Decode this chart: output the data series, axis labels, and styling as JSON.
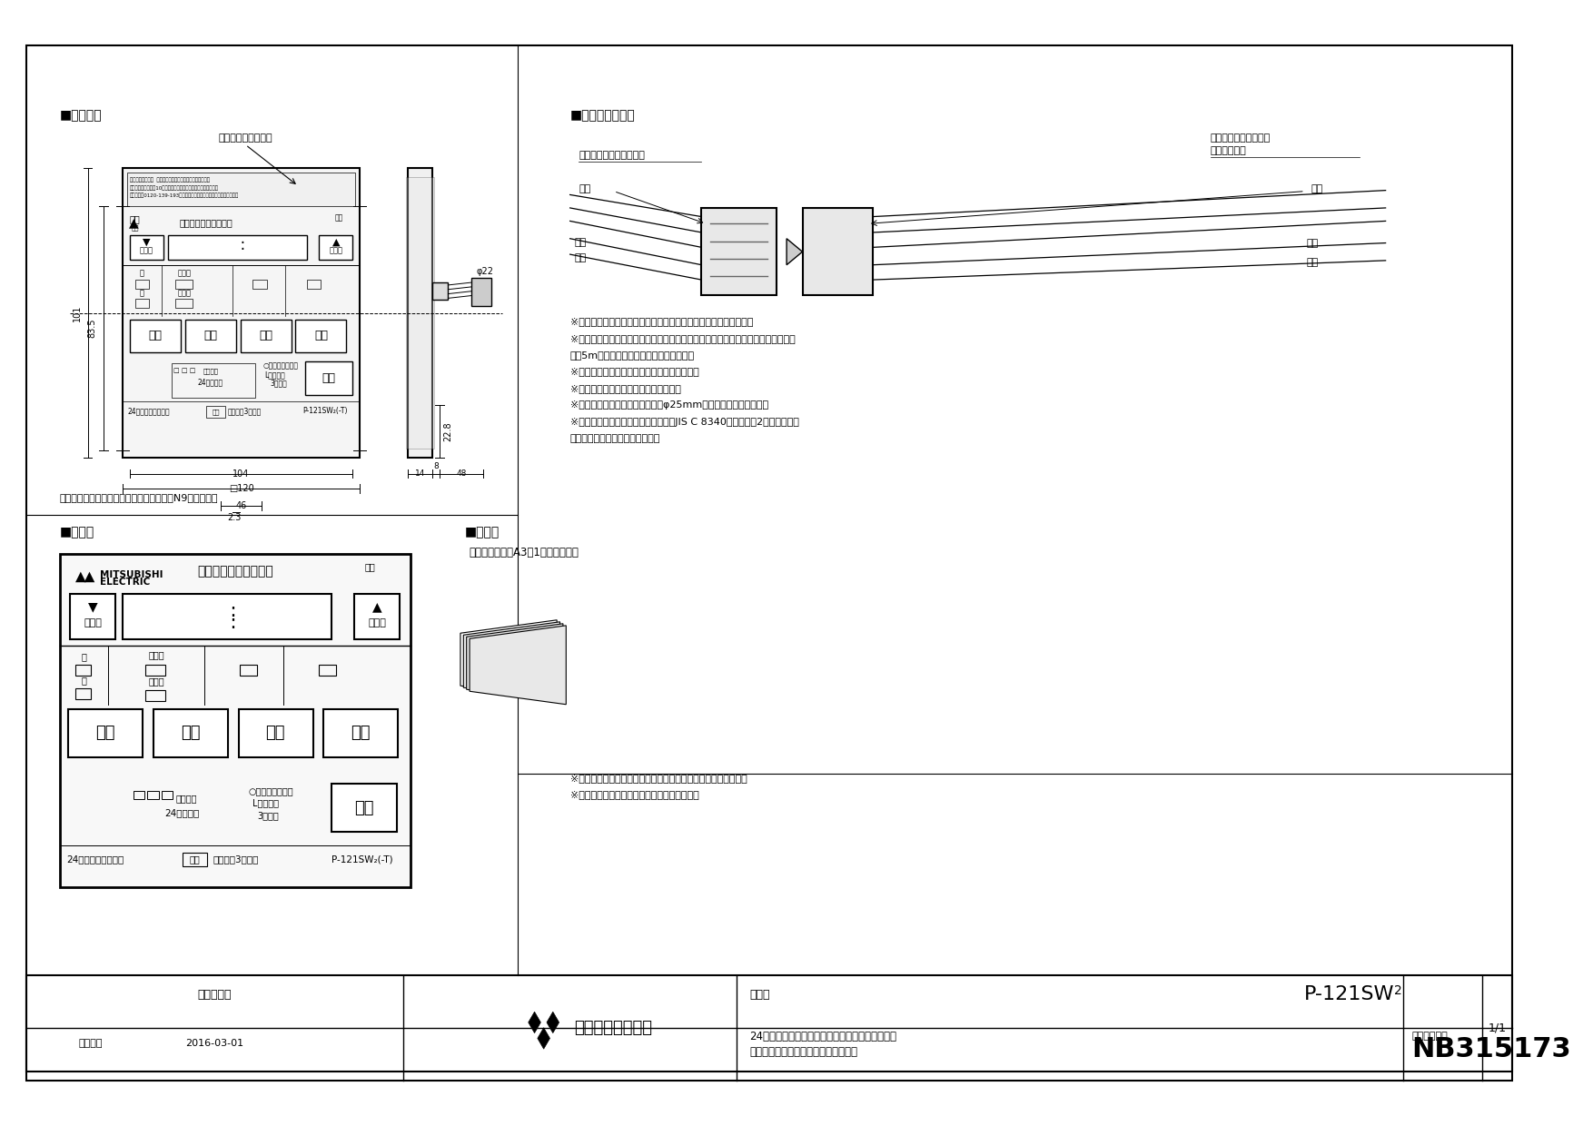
{
  "bg_color": "#ffffff",
  "title_section1": "■外形寸法",
  "title_section2": "■コネクタ接続部",
  "title_section3": "■表示部",
  "title_section4": "■付属品",
  "label_tokutei": "特定保守製品ラベル",
  "label_control_side": "コントロールスイッチ側",
  "label_control_switch": "コントロールスイッチ",
  "label_connection_code": "接続コード側",
  "label_aka": "アカ",
  "label_shiro": "シロ",
  "label_kuro": "クロ",
  "notes": [
    "※付属の据付説明書をお読みいただき、正しく据付けてください。",
    "※コントロールスイッチと本体を接続するためのコントロールスイッチ接続コード",
    "　（5m）は、本体側に同梱されています。",
    "※据付ねじはお客さまにて手配してください。",
    "※浴室の壁には据付けないでください。",
    "※壁に直接据付ける場合は、壁にφ25mmの穴を開けてください。",
    "※スイッチボックスに据付ける場合はJIS C 8340に適合した2個用スイッチ",
    "　ボックスに据付けてください。"
  ],
  "color_note": "コントロールスイッチ枠色調：マンセル　N9（近似色）",
  "accessory_label": "・据付説明書（A3　1枚四つ折り）",
  "notes2_1": "※適合機種：カタログや本体の納入仕様書を確認してください。",
  "notes2_2": "※仕様は場合により変妙することがあります。",
  "footer_sankaku": "第３角図案",
  "footer_company": "三菱電機株式会社",
  "footer_katachi": "形　名",
  "footer_model": "P-121SW",
  "footer_model_sub": "2",
  "footer_desc1": "24時間換気機能付バス久燥・暖房・換気システム",
  "footer_desc2": "コントロールスイッチ（標準タイプ）",
  "footer_date_label": "作成日付",
  "footer_date": "2016-03-01",
  "footer_seiri_label": "整　理　番号",
  "footer_seiri": "NB315173",
  "footer_page": "1/1"
}
